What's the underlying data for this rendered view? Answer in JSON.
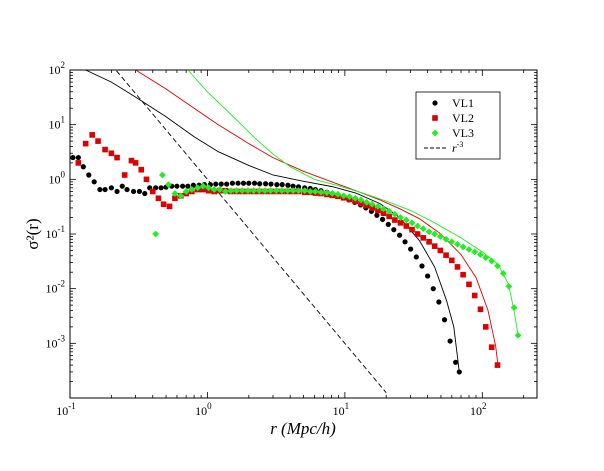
{
  "chart_data": {
    "type": "scatter",
    "title": "",
    "xlabel": "r (Mpc/h)",
    "ylabel": "σ²(r)",
    "xscale": "log",
    "yscale": "log",
    "xlim": [
      0.1,
      250
    ],
    "ylim": [
      0.0001,
      100
    ],
    "legend_position": "top-right",
    "x_ticks": [
      {
        "value": 0.1,
        "base": "10",
        "exp": "-1"
      },
      {
        "value": 1,
        "base": "10",
        "exp": "0"
      },
      {
        "value": 10,
        "base": "10",
        "exp": "1"
      },
      {
        "value": 100,
        "base": "10",
        "exp": "2"
      }
    ],
    "y_ticks": [
      {
        "value": 0.001,
        "base": "10",
        "exp": "-3"
      },
      {
        "value": 0.01,
        "base": "10",
        "exp": "-2"
      },
      {
        "value": 0.1,
        "base": "10",
        "exp": "-1"
      },
      {
        "value": 1,
        "base": "10",
        "exp": "0"
      },
      {
        "value": 10,
        "base": "10",
        "exp": "1"
      },
      {
        "value": 100,
        "base": "10",
        "exp": "2"
      }
    ],
    "series": [
      {
        "name": "VL1",
        "marker": "circle",
        "color": "#000000",
        "x": [
          0.105,
          0.115,
          0.125,
          0.137,
          0.15,
          0.165,
          0.18,
          0.2,
          0.22,
          0.24,
          0.26,
          0.29,
          0.32,
          0.35,
          0.38,
          0.42,
          0.46,
          0.5,
          0.55,
          0.6,
          0.66,
          0.72,
          0.79,
          0.87,
          0.95,
          1.05,
          1.15,
          1.26,
          1.38,
          1.52,
          1.67,
          1.83,
          2.0,
          2.2,
          2.4,
          2.65,
          2.9,
          3.2,
          3.5,
          3.85,
          4.2,
          4.6,
          5.1,
          5.6,
          6.1,
          6.7,
          7.4,
          8.1,
          8.9,
          9.8,
          10.7,
          11.8,
          13.0,
          14.2,
          15.6,
          17.1,
          18.8,
          20.7,
          22.7,
          25.0,
          27.4,
          30.1,
          33.1,
          36.4,
          40.0,
          44.0,
          48.3,
          53.1,
          58.3,
          64.0,
          68.0
        ],
        "y": [
          2.5,
          2.5,
          1.7,
          1.2,
          0.9,
          0.65,
          0.65,
          0.7,
          0.6,
          0.75,
          0.65,
          0.6,
          0.6,
          0.55,
          0.7,
          0.7,
          0.7,
          0.72,
          0.75,
          0.75,
          0.75,
          0.75,
          0.78,
          0.78,
          0.8,
          0.8,
          0.82,
          0.82,
          0.82,
          0.85,
          0.85,
          0.85,
          0.85,
          0.85,
          0.83,
          0.83,
          0.82,
          0.8,
          0.8,
          0.78,
          0.75,
          0.73,
          0.7,
          0.68,
          0.65,
          0.62,
          0.58,
          0.55,
          0.5,
          0.46,
          0.42,
          0.38,
          0.34,
          0.3,
          0.26,
          0.22,
          0.185,
          0.15,
          0.12,
          0.095,
          0.072,
          0.053,
          0.038,
          0.026,
          0.017,
          0.01,
          0.0057,
          0.0027,
          0.0011,
          0.00045,
          0.0003
        ]
      },
      {
        "name": "VL2",
        "marker": "square",
        "color": "#dd0000",
        "x": [
          0.115,
          0.13,
          0.145,
          0.16,
          0.18,
          0.2,
          0.22,
          0.25,
          0.28,
          0.3,
          0.33,
          0.36,
          0.4,
          0.44,
          0.48,
          0.53,
          0.58,
          0.64,
          0.7,
          0.77,
          0.85,
          0.93,
          1.02,
          1.12,
          1.23,
          1.35,
          1.48,
          1.63,
          1.79,
          1.97,
          2.17,
          2.38,
          2.62,
          2.88,
          3.17,
          3.48,
          3.83,
          4.2,
          4.6,
          5.1,
          5.6,
          6.1,
          6.7,
          7.4,
          8.1,
          8.9,
          9.8,
          10.8,
          11.9,
          13.1,
          14.4,
          15.8,
          17.4,
          19.1,
          21.0,
          23.1,
          25.4,
          28.0,
          30.8,
          33.8,
          37.2,
          41.0,
          45.0,
          49.5,
          54.5,
          60.0,
          66.0,
          72.5,
          80.0,
          88.0,
          97.0,
          106.0,
          117.0,
          129.0
        ],
        "y": [
          2.0,
          4.5,
          6.5,
          5.0,
          3.5,
          3.0,
          2.5,
          1.2,
          2.2,
          2.0,
          1.5,
          1.0,
          0.6,
          0.45,
          0.35,
          0.32,
          0.45,
          0.5,
          0.55,
          0.6,
          0.65,
          0.65,
          0.62,
          0.6,
          0.62,
          0.62,
          0.6,
          0.6,
          0.6,
          0.6,
          0.6,
          0.6,
          0.6,
          0.6,
          0.6,
          0.6,
          0.6,
          0.6,
          0.6,
          0.58,
          0.58,
          0.56,
          0.55,
          0.53,
          0.51,
          0.49,
          0.46,
          0.43,
          0.4,
          0.36,
          0.33,
          0.3,
          0.27,
          0.24,
          0.21,
          0.18,
          0.16,
          0.14,
          0.12,
          0.1,
          0.085,
          0.072,
          0.06,
          0.05,
          0.041,
          0.033,
          0.025,
          0.018,
          0.012,
          0.0075,
          0.0042,
          0.002,
          0.00085,
          0.0004
        ]
      },
      {
        "name": "VL3",
        "marker": "diamond",
        "color": "#22ee22",
        "x": [
          0.42,
          0.47,
          0.52,
          0.58,
          0.64,
          0.7,
          0.77,
          0.85,
          0.93,
          1.02,
          1.12,
          1.23,
          1.35,
          1.48,
          1.63,
          1.79,
          1.97,
          2.17,
          2.38,
          2.62,
          2.88,
          3.17,
          3.48,
          3.83,
          4.2,
          4.6,
          5.1,
          5.6,
          6.1,
          6.7,
          7.4,
          8.1,
          8.9,
          9.8,
          10.8,
          11.9,
          13.1,
          14.4,
          15.8,
          17.4,
          19.1,
          21.0,
          23.1,
          25.4,
          28.0,
          30.8,
          33.8,
          37.2,
          41.0,
          45.0,
          49.5,
          54.5,
          60.0,
          66.0,
          72.5,
          80.0,
          88.0,
          97.0,
          106.0,
          117.0,
          129.0,
          142.0,
          156.0,
          170.0,
          182.0
        ],
        "y": [
          0.1,
          1.2,
          0.8,
          0.55,
          0.5,
          0.6,
          0.65,
          0.7,
          0.75,
          0.7,
          0.65,
          0.65,
          0.6,
          0.62,
          0.62,
          0.62,
          0.62,
          0.62,
          0.62,
          0.62,
          0.62,
          0.62,
          0.62,
          0.62,
          0.62,
          0.62,
          0.62,
          0.6,
          0.6,
          0.58,
          0.57,
          0.55,
          0.53,
          0.5,
          0.48,
          0.45,
          0.42,
          0.38,
          0.35,
          0.32,
          0.29,
          0.26,
          0.23,
          0.2,
          0.18,
          0.16,
          0.14,
          0.125,
          0.11,
          0.1,
          0.09,
          0.08,
          0.072,
          0.065,
          0.058,
          0.052,
          0.047,
          0.042,
          0.037,
          0.032,
          0.026,
          0.019,
          0.011,
          0.0045,
          0.0014
        ]
      }
    ],
    "lines": [
      {
        "name": "VL1-smooth",
        "color": "#000000",
        "x": [
          0.13,
          0.2,
          0.3,
          0.5,
          0.8,
          1.2,
          2,
          3,
          5,
          8,
          12,
          18,
          25,
          35,
          45,
          55,
          62,
          68
        ],
        "y": [
          100,
          60,
          32,
          14,
          6,
          3.2,
          1.8,
          1.2,
          0.92,
          0.74,
          0.56,
          0.36,
          0.2,
          0.075,
          0.025,
          0.006,
          0.002,
          0.0003
        ]
      },
      {
        "name": "VL2-smooth",
        "color": "#dd0000",
        "x": [
          0.3,
          0.5,
          0.8,
          1.2,
          2,
          3,
          5,
          8,
          12,
          18,
          25,
          35,
          50,
          70,
          90,
          110,
          125,
          130
        ],
        "y": [
          100,
          45,
          20,
          10,
          4.5,
          2.5,
          1.4,
          0.9,
          0.62,
          0.42,
          0.29,
          0.19,
          0.1,
          0.042,
          0.016,
          0.004,
          0.0009,
          0.0004
        ]
      },
      {
        "name": "VL3-smooth",
        "color": "#22ee22",
        "x": [
          0.72,
          1,
          1.5,
          2.2,
          3,
          4,
          6,
          9,
          13,
          20,
          30,
          45,
          70,
          100,
          130,
          155,
          170,
          182
        ],
        "y": [
          100,
          40,
          15,
          5.8,
          2.9,
          1.7,
          1.0,
          0.76,
          0.58,
          0.4,
          0.27,
          0.16,
          0.085,
          0.047,
          0.028,
          0.012,
          0.004,
          0.0014
        ]
      },
      {
        "name": "r^-3",
        "color": "#000000",
        "dash": "5,3",
        "x": [
          0.2,
          20
        ],
        "y": [
          125,
          0.000125
        ]
      }
    ],
    "legend": [
      {
        "label": "VL1",
        "marker": "circle",
        "color": "#000000"
      },
      {
        "label": "VL2",
        "marker": "square",
        "color": "#dd0000"
      },
      {
        "label": "VL3",
        "marker": "diamond",
        "color": "#22ee22"
      },
      {
        "label_base": "r",
        "label_exp": "-3",
        "marker": "dashed-line",
        "color": "#000000"
      }
    ]
  }
}
